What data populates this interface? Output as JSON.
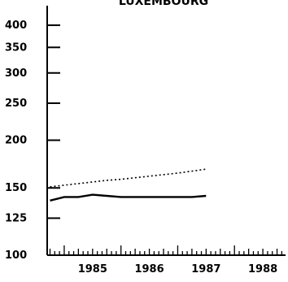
{
  "chart_data": {
    "type": "line",
    "title": "LUXEMBOURG",
    "xlabel": "",
    "ylabel": "",
    "y_scale": "log",
    "ylim": [
      100,
      450
    ],
    "xlim": [
      1984.7,
      1988.9
    ],
    "grid": false,
    "x_ticks": [
      "1985",
      "1986",
      "1987",
      "1988"
    ],
    "y_ticks": [
      100,
      125,
      150,
      200,
      250,
      300,
      350,
      400
    ],
    "series": [
      {
        "style": "dotted",
        "x": [
          1984.75,
          1985.0,
          1985.25,
          1985.5,
          1985.75,
          1986.0,
          1986.25,
          1986.5,
          1986.75,
          1987.0,
          1987.25,
          1987.5
        ],
        "values": [
          151,
          152.5,
          154,
          155.5,
          157,
          158,
          159.5,
          161,
          162.5,
          164,
          166,
          168
        ]
      },
      {
        "style": "solid",
        "x": [
          1984.75,
          1985.0,
          1985.25,
          1985.5,
          1985.75,
          1986.0,
          1986.25,
          1986.5,
          1986.75,
          1987.0,
          1987.25,
          1987.5
        ],
        "values": [
          139,
          142,
          142,
          144,
          143,
          142,
          142,
          142,
          142,
          142,
          142,
          143
        ]
      }
    ]
  }
}
